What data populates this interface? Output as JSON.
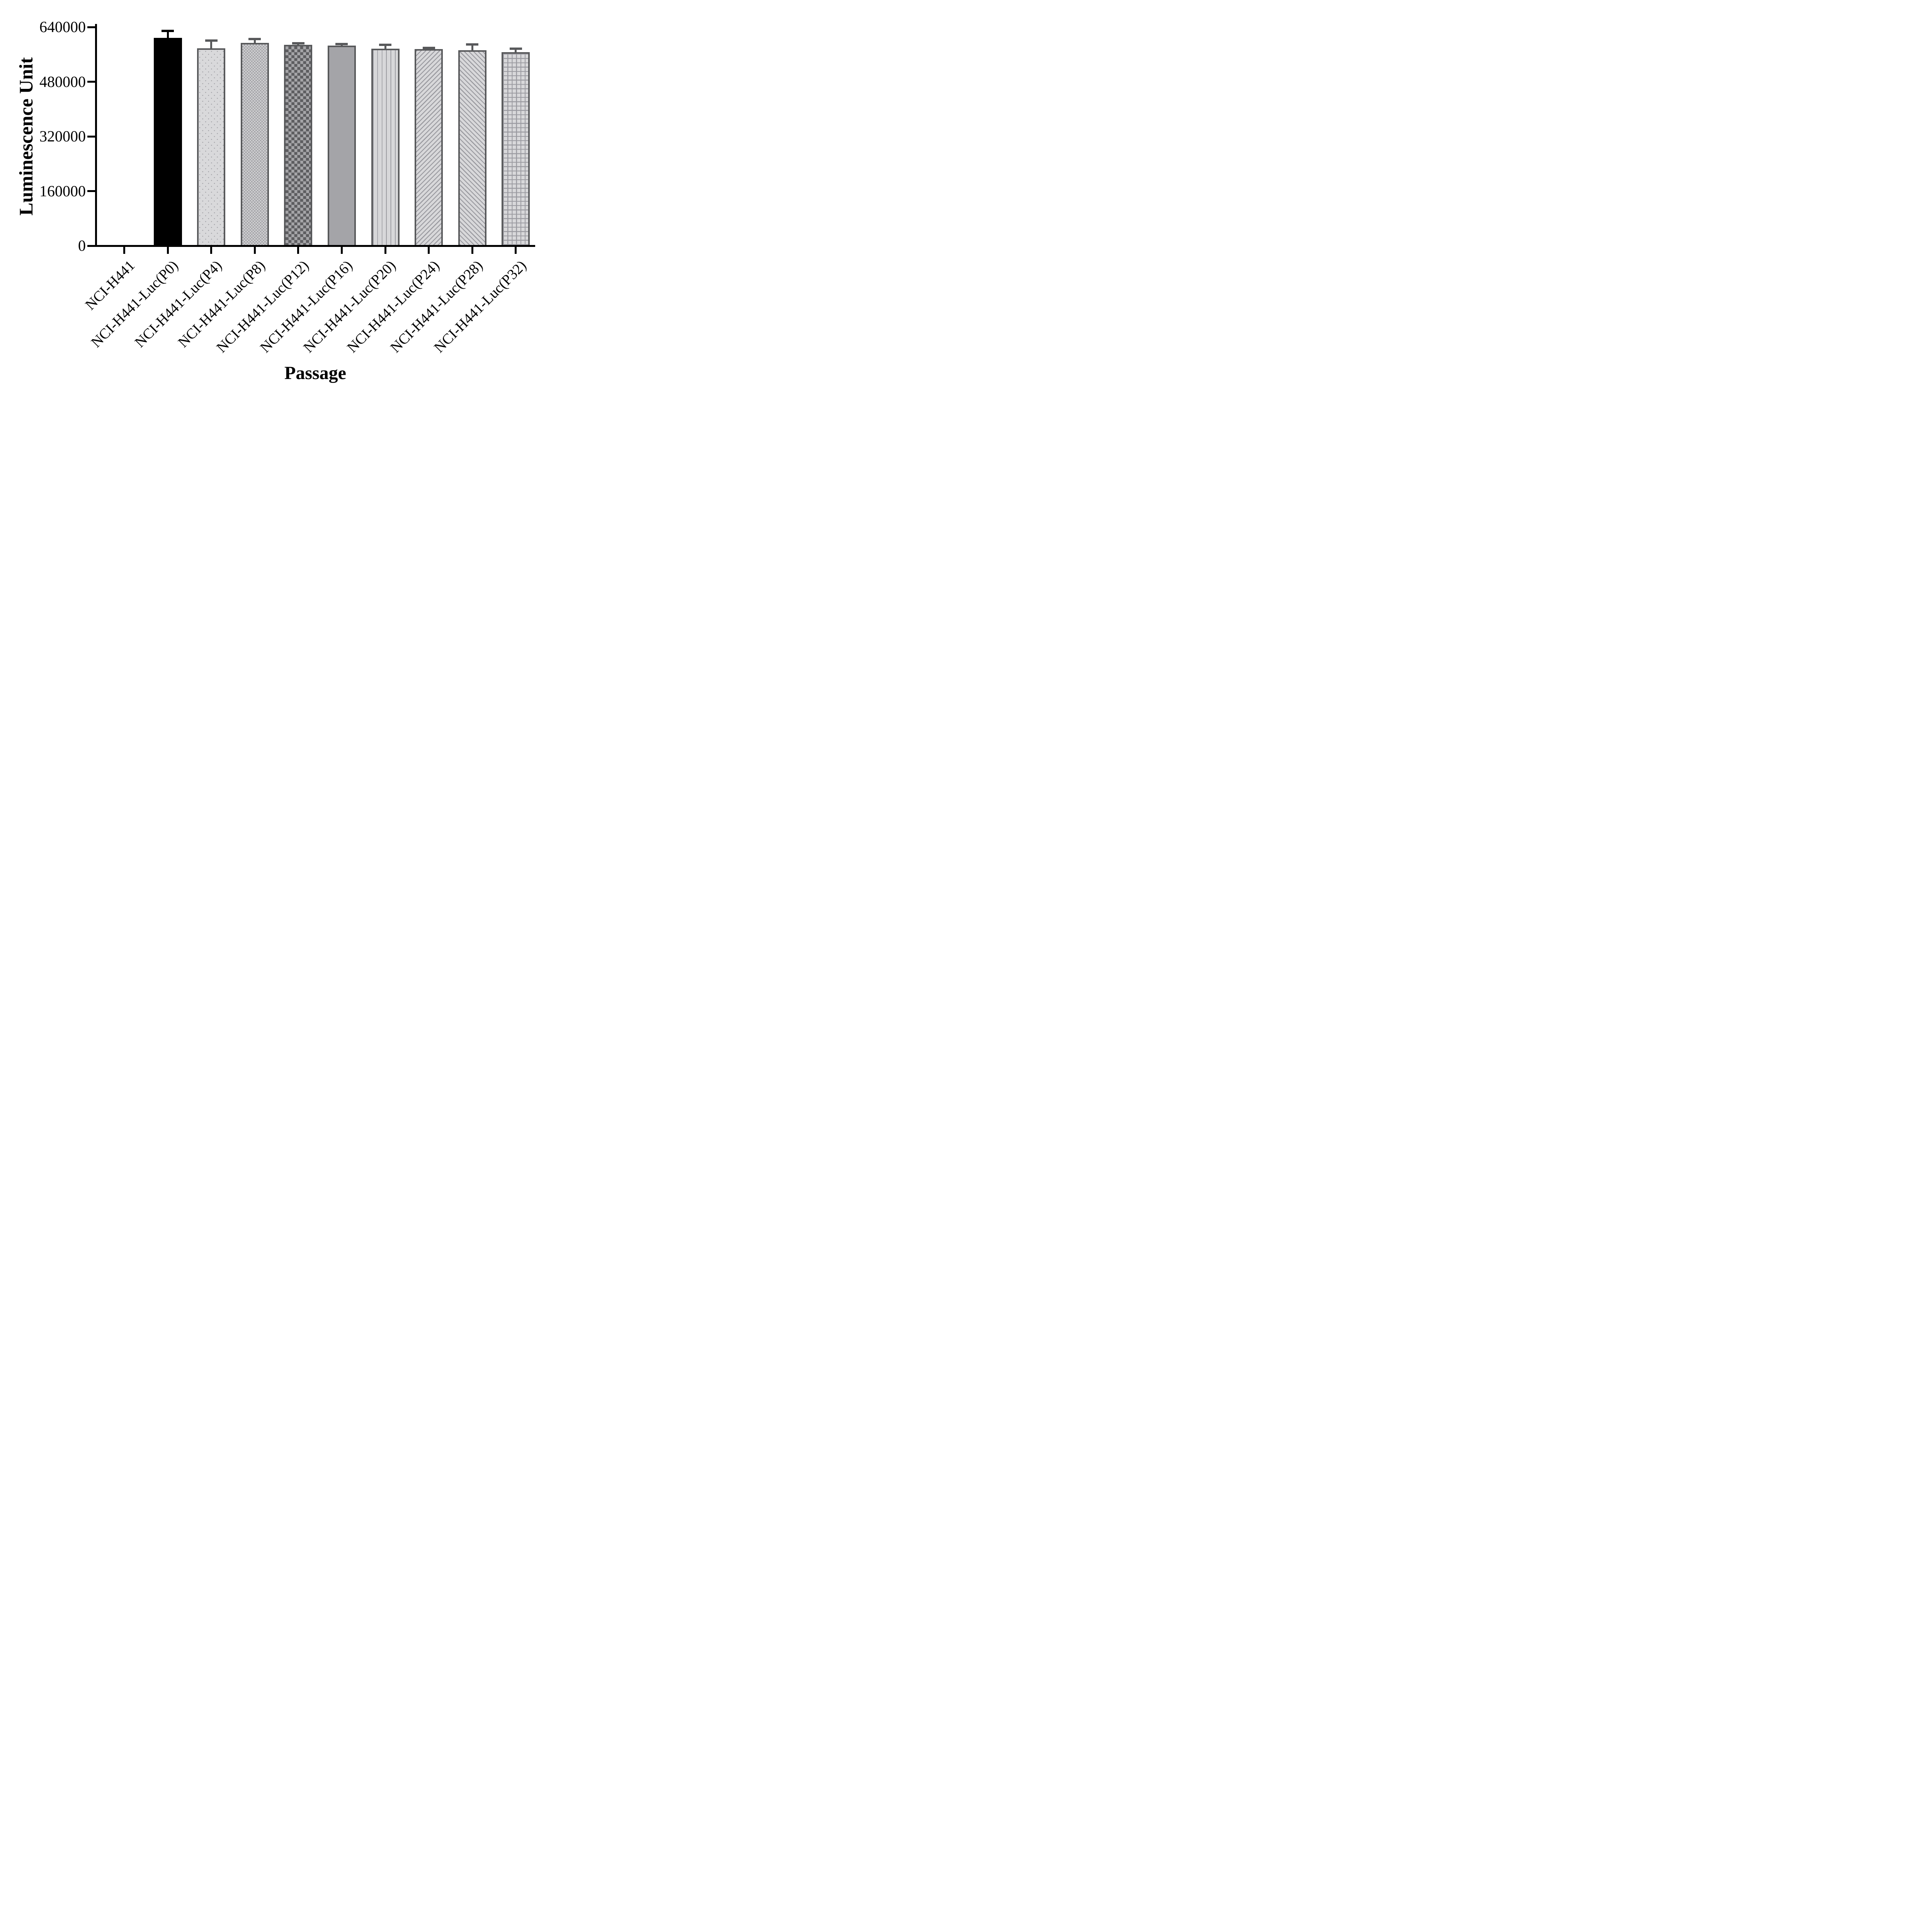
{
  "chart_data": {
    "type": "bar",
    "title": "",
    "xlabel": "Passage",
    "ylabel": "Luminescence Unit",
    "ylim": [
      0,
      640000
    ],
    "yticks": [
      640000,
      480000,
      320000,
      160000,
      0
    ],
    "ytick_labels": [
      "640000",
      "480000",
      "320000",
      "160000",
      "0"
    ],
    "grid": "off",
    "legend": "none",
    "categories": [
      "NCI-H441",
      "NCI-H441-Luc(P0)",
      "NCI-H441-Luc(P4)",
      "NCI-H441-Luc(P8)",
      "NCI-H441-Luc(P12)",
      "NCI-H441-Luc(P16)",
      "NCI-H441-Luc(P20)",
      "NCI-H441-Luc(P24)",
      "NCI-H441-Luc(P28)",
      "NCI-H441-Luc(P32)"
    ],
    "values": [
      0,
      608000,
      578000,
      594000,
      588000,
      586000,
      577000,
      575000,
      572000,
      566000
    ],
    "errors_upper": [
      0,
      21000,
      22000,
      11000,
      5000,
      4000,
      11000,
      3500,
      17000,
      11000
    ],
    "bar_patterns": [
      "none",
      "solid-black",
      "dots",
      "checker-fine",
      "checker-coarse",
      "solid-gray",
      "vlines",
      "diag-forward",
      "diag-back",
      "grid"
    ],
    "error_colors": [
      "#000000",
      "#000000",
      "#58595b",
      "#58595b",
      "#58595b",
      "#58595b",
      "#58595b",
      "#58595b",
      "#58595b",
      "#58595b"
    ],
    "colors": {
      "axis": "#000000",
      "bar_border": "#58595b",
      "pattern_light": "#d8d8da",
      "pattern_mid": "#a3a3a7",
      "pattern_dark": "#5d5d60",
      "background": "#ffffff"
    }
  }
}
